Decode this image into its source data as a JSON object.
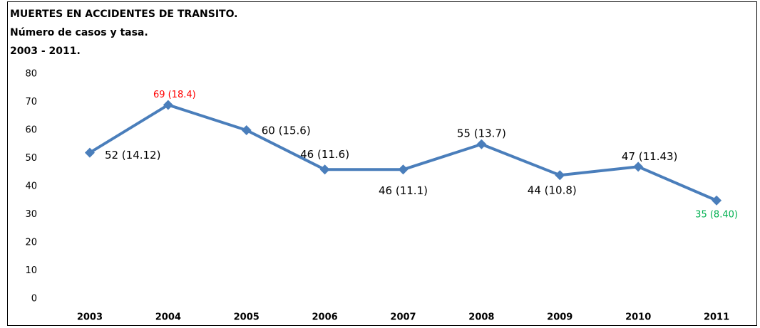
{
  "chart_data": {
    "type": "line",
    "title": [
      "MUERTES  EN ACCIDENTES DE TRANSITO.",
      "Número de casos y tasa.",
      "2003 - 2011."
    ],
    "categories": [
      "2003",
      "2004",
      "2005",
      "2006",
      "2007",
      "2008",
      "2009",
      "2010",
      "2011"
    ],
    "values": [
      52,
      69,
      60,
      46,
      46,
      55,
      44,
      47,
      35
    ],
    "value_labels": [
      "52 (14.12)",
      "69 (18.4)",
      "60 (15.6)",
      "46 (11.6)",
      "46 (11.1)",
      "55 (13.7)",
      "44 (10.8)",
      "47 (11.43)",
      "35 (8.40)"
    ],
    "value_label_colors": [
      "#000000",
      "#ff0000",
      "#000000",
      "#000000",
      "#000000",
      "#000000",
      "#000000",
      "#000000",
      "#00b050"
    ],
    "color": "#4a7ebb",
    "ylim": [
      0,
      80
    ],
    "yticks": [
      0,
      10,
      20,
      30,
      40,
      50,
      60,
      70,
      80
    ],
    "grid": false
  }
}
